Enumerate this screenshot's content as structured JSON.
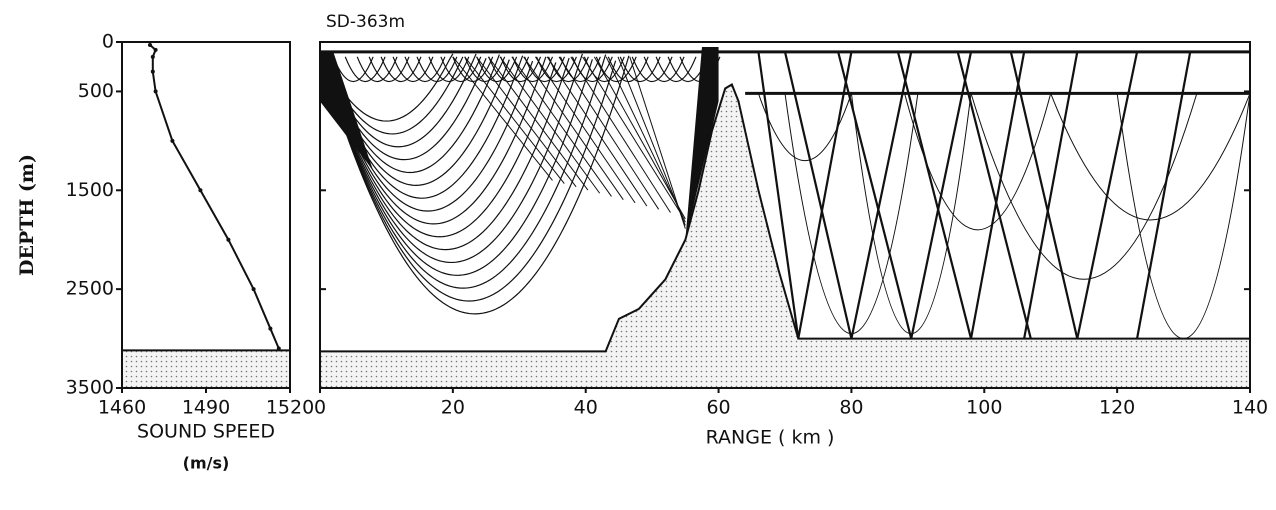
{
  "chart_data": [
    {
      "type": "profile",
      "x_label": "SOUND SPEED",
      "x_unit": "(m/s)",
      "y_label": "DEPTH (m)",
      "x": [
        1470,
        1472,
        1471,
        1471,
        1472,
        1478,
        1488,
        1498,
        1507,
        1513,
        1516
      ],
      "values": [
        30,
        80,
        150,
        300,
        500,
        1000,
        1500,
        2000,
        2500,
        2900,
        3100
      ],
      "xlim": [
        1460,
        1520
      ],
      "ylim": [
        0,
        3500
      ],
      "xticks": [
        1460,
        1490,
        1520
      ],
      "yticks": [
        0,
        500,
        1500,
        2500,
        3500
      ],
      "seafloor": 3120,
      "color": "#111111"
    },
    {
      "type": "bathymetry",
      "title": "SD-363m",
      "x_label": "RANGE  ( km )",
      "x": [
        0,
        43,
        45,
        48,
        52,
        55,
        57,
        59,
        61,
        62,
        63,
        66,
        69,
        72,
        140
      ],
      "values": [
        3130,
        3130,
        2800,
        2700,
        2400,
        2000,
        1500,
        900,
        470,
        430,
        600,
        1500,
        2300,
        3000,
        3000
      ],
      "xlim": [
        0,
        140
      ],
      "ylim": [
        0,
        3500
      ],
      "xticks": [
        0,
        20,
        40,
        60,
        80,
        100,
        120,
        140
      ],
      "color": "#111111"
    }
  ]
}
